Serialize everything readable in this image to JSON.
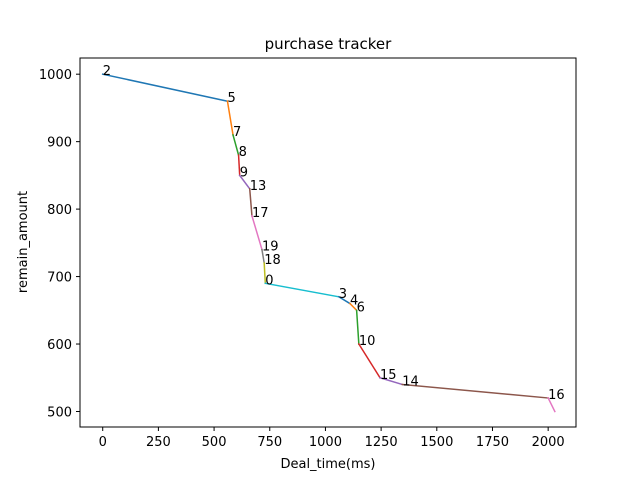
{
  "chart_data": {
    "type": "line",
    "title": "purchase tracker",
    "xlabel": "Deal_time(ms)",
    "ylabel": "remain_amount",
    "xlim": [
      -102,
      2125
    ],
    "ylim": [
      477,
      1024
    ],
    "grid": false,
    "legend": "none",
    "xticks": [
      0,
      250,
      500,
      750,
      1000,
      1250,
      1500,
      1750,
      2000
    ],
    "yticks": [
      500,
      600,
      700,
      800,
      900,
      1000
    ],
    "points": [
      {
        "label": "2",
        "x": 0,
        "y": 1000
      },
      {
        "label": "5",
        "x": 560,
        "y": 960
      },
      {
        "label": "7",
        "x": 585,
        "y": 910
      },
      {
        "label": "8",
        "x": 610,
        "y": 880
      },
      {
        "label": "9",
        "x": 615,
        "y": 850
      },
      {
        "label": "13",
        "x": 660,
        "y": 830
      },
      {
        "label": "17",
        "x": 670,
        "y": 790
      },
      {
        "label": "19",
        "x": 715,
        "y": 740
      },
      {
        "label": "18",
        "x": 725,
        "y": 720
      },
      {
        "label": "0",
        "x": 730,
        "y": 690
      },
      {
        "label": "3",
        "x": 1060,
        "y": 670
      },
      {
        "label": "4",
        "x": 1110,
        "y": 660
      },
      {
        "label": "6",
        "x": 1140,
        "y": 650
      },
      {
        "label": "10",
        "x": 1150,
        "y": 600
      },
      {
        "label": "15",
        "x": 1245,
        "y": 550
      },
      {
        "label": "14",
        "x": 1345,
        "y": 540
      },
      {
        "label": "16",
        "x": 2000,
        "y": 520
      },
      {
        "label": "",
        "x": 2030,
        "y": 500
      }
    ],
    "segment_colors": [
      "#1f77b4",
      "#ff7f0e",
      "#2ca02c",
      "#d62728",
      "#9467bd",
      "#8c564b",
      "#e377c2",
      "#7f7f7f",
      "#bcbd22",
      "#17becf"
    ]
  }
}
